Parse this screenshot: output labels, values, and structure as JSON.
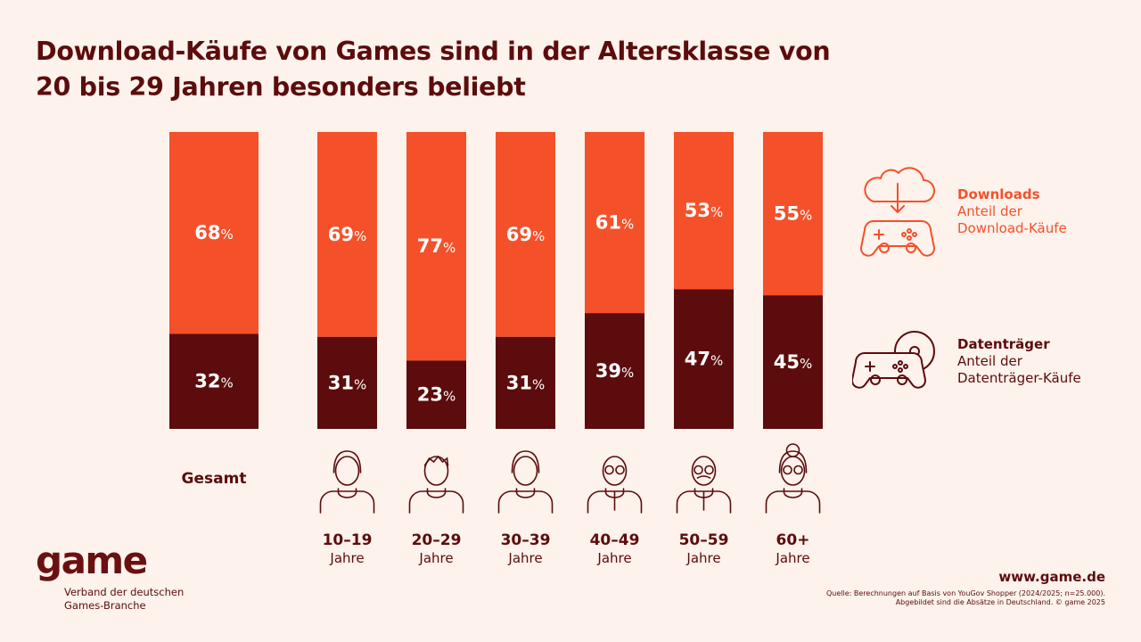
{
  "title": "Download-Käufe von Games sind in der Altersklasse von 20 bis 29 Jahren besonders beliebt",
  "colors": {
    "downloads": "#f4512b",
    "datentraeger": "#5c0c0c",
    "background": "#fdf2ec"
  },
  "chart_data": {
    "type": "bar",
    "stacked": true,
    "categories": [
      "Gesamt",
      "10–19 Jahre",
      "20–29 Jahre",
      "30–39 Jahre",
      "40–49 Jahre",
      "50–59 Jahre",
      "60+ Jahre"
    ],
    "category_lines": [
      [
        "Gesamt"
      ],
      [
        "10–19",
        "Jahre"
      ],
      [
        "20–29",
        "Jahre"
      ],
      [
        "30–39",
        "Jahre"
      ],
      [
        "40–49",
        "Jahre"
      ],
      [
        "50–59",
        "Jahre"
      ],
      [
        "60+",
        "Jahre"
      ]
    ],
    "series": [
      {
        "name": "Downloads",
        "values": [
          68,
          69,
          77,
          69,
          61,
          53,
          55
        ],
        "labels": [
          "68",
          "69",
          "77",
          "69",
          "61",
          "53",
          "55"
        ]
      },
      {
        "name": "Datenträger",
        "values": [
          32,
          31,
          23,
          31,
          39,
          47,
          45
        ],
        "labels": [
          "32",
          "31",
          "23",
          "31",
          "39",
          "47",
          "45"
        ]
      }
    ],
    "unit": "%",
    "ylim": [
      0,
      100
    ],
    "icons": [
      "",
      "person-young-icon",
      "person-young-man-icon",
      "person-woman-icon",
      "person-glasses-icon",
      "person-mustache-icon",
      "person-senior-icon"
    ]
  },
  "legend": {
    "downloads": {
      "title": "Downloads",
      "line1": "Anteil der",
      "line2": "Download-Käufe",
      "icon": "cloud-download-gamepad-icon"
    },
    "datentraeger": {
      "title": "Datenträger",
      "line1": "Anteil der",
      "line2": "Datenträger-Käufe",
      "icon": "disc-gamepad-icon"
    }
  },
  "footer": {
    "logo": "game",
    "logo_sub_line1": "Verband der deutschen",
    "logo_sub_line2": "Games-Branche",
    "website": "www.game.de",
    "source_line1": "Quelle: Berechnungen auf Basis von YouGov Shopper (2024/2025; n=25.000).",
    "source_line2": "Abgebildet sind die Absätze in Deutschland. © game 2025"
  }
}
